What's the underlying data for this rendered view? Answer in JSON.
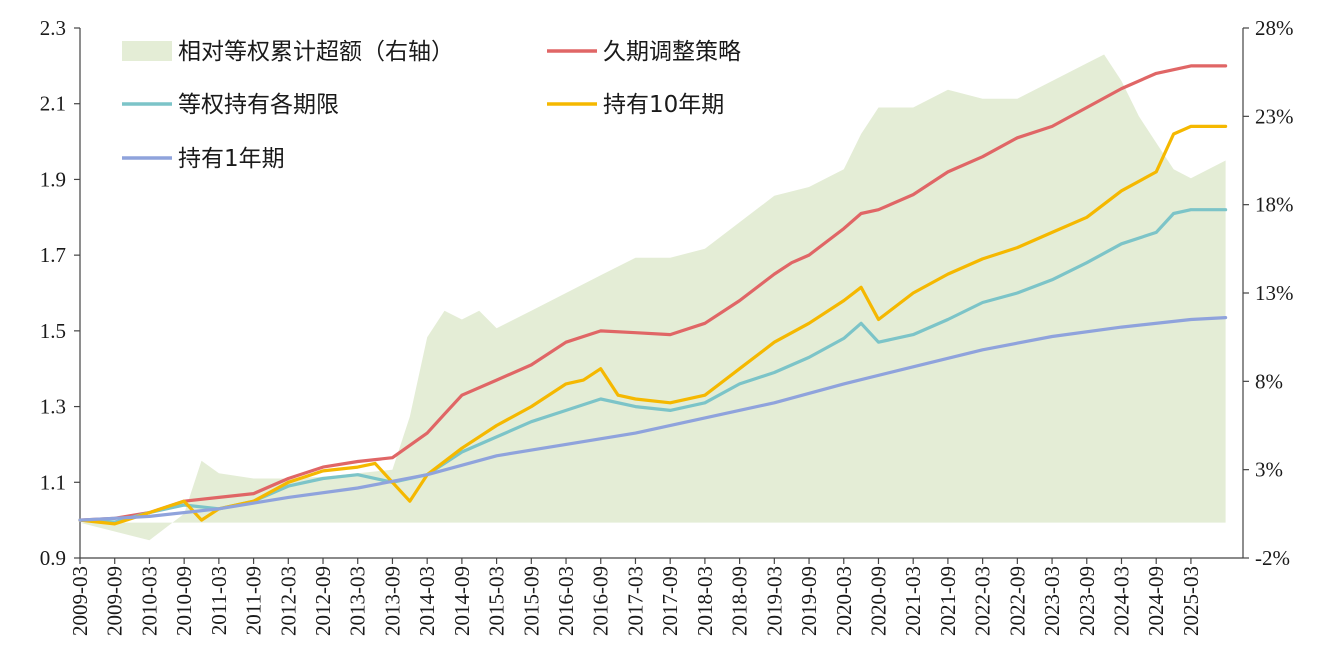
{
  "chart_data": {
    "type": "line",
    "title": "",
    "xlabel": "",
    "ylabel": "",
    "ylim": [
      0.9,
      2.3
    ],
    "y_ticks": [
      "0.9",
      "1.1",
      "1.3",
      "1.5",
      "1.7",
      "1.9",
      "2.1",
      "2.3"
    ],
    "y2lim": [
      -2,
      28
    ],
    "y2_ticks": [
      "-2%",
      "3%",
      "8%",
      "13%",
      "18%",
      "23%",
      "28%"
    ],
    "x_ticks": [
      "2009-03",
      "2009-09",
      "2010-03",
      "2010-09",
      "2011-03",
      "2011-09",
      "2012-03",
      "2012-09",
      "2013-03",
      "2013-09",
      "2014-03",
      "2014-09",
      "2015-03",
      "2015-09",
      "2016-03",
      "2016-09",
      "2017-03",
      "2017-09",
      "2018-03",
      "2018-09",
      "2019-03",
      "2019-09",
      "2020-03",
      "2020-09",
      "2021-03",
      "2021-09",
      "2022-03",
      "2022-09",
      "2023-03",
      "2023-09",
      "2024-03",
      "2024-09",
      "2025-03"
    ],
    "grid": false,
    "legend_position": "top-left",
    "area": {
      "name": "相对等权累计超额（右轴）",
      "color": "#e4edd6",
      "x": [
        "2009-03",
        "2009-09",
        "2010-03",
        "2010-09",
        "2010-12",
        "2011-03",
        "2011-09",
        "2012-03",
        "2012-09",
        "2013-03",
        "2013-09",
        "2013-12",
        "2014-03",
        "2014-06",
        "2014-09",
        "2014-12",
        "2015-03",
        "2015-09",
        "2016-03",
        "2016-09",
        "2017-03",
        "2017-09",
        "2018-03",
        "2018-09",
        "2019-03",
        "2019-09",
        "2020-03",
        "2020-06",
        "2020-09",
        "2021-03",
        "2021-09",
        "2022-03",
        "2022-09",
        "2023-03",
        "2023-09",
        "2023-12",
        "2024-03",
        "2024-06",
        "2024-09",
        "2024-12",
        "2025-03",
        "2025-09"
      ],
      "values": [
        0.0,
        -0.5,
        -1.0,
        0.5,
        3.5,
        2.8,
        2.5,
        2.5,
        2.6,
        2.8,
        3.0,
        6.0,
        10.5,
        12.0,
        11.5,
        12.0,
        11.0,
        12.0,
        13.0,
        14.0,
        15.0,
        15.0,
        15.5,
        17.0,
        18.5,
        19.0,
        20.0,
        22.0,
        23.5,
        23.5,
        24.5,
        24.0,
        24.0,
        25.0,
        26.0,
        26.5,
        25.0,
        23.0,
        21.5,
        20.0,
        19.5,
        20.5
      ]
    },
    "series": [
      {
        "name": "久期调整策略",
        "color": "#e06666",
        "x": [
          "2009-03",
          "2009-09",
          "2010-03",
          "2010-09",
          "2011-03",
          "2011-09",
          "2012-03",
          "2012-09",
          "2013-03",
          "2013-09",
          "2014-03",
          "2014-06",
          "2014-09",
          "2015-03",
          "2015-09",
          "2016-03",
          "2016-09",
          "2017-03",
          "2017-09",
          "2018-03",
          "2018-09",
          "2019-03",
          "2019-06",
          "2019-09",
          "2020-03",
          "2020-06",
          "2020-09",
          "2021-03",
          "2021-09",
          "2022-03",
          "2022-09",
          "2023-03",
          "2023-09",
          "2024-03",
          "2024-09",
          "2025-03",
          "2025-09"
        ],
        "values": [
          1.0,
          1.005,
          1.02,
          1.05,
          1.06,
          1.07,
          1.11,
          1.14,
          1.155,
          1.165,
          1.23,
          1.28,
          1.33,
          1.37,
          1.41,
          1.47,
          1.5,
          1.495,
          1.49,
          1.52,
          1.58,
          1.65,
          1.68,
          1.7,
          1.77,
          1.81,
          1.82,
          1.86,
          1.92,
          1.96,
          2.01,
          2.04,
          2.09,
          2.14,
          2.18,
          2.2,
          2.2
        ]
      },
      {
        "name": "等权持有各期限",
        "color": "#7cc4c8",
        "x": [
          "2009-03",
          "2009-09",
          "2010-03",
          "2010-09",
          "2011-03",
          "2011-09",
          "2012-03",
          "2012-09",
          "2013-03",
          "2013-09",
          "2014-03",
          "2014-09",
          "2015-03",
          "2015-09",
          "2016-03",
          "2016-09",
          "2017-03",
          "2017-09",
          "2018-03",
          "2018-09",
          "2019-03",
          "2019-09",
          "2020-03",
          "2020-06",
          "2020-09",
          "2021-03",
          "2021-09",
          "2022-03",
          "2022-09",
          "2023-03",
          "2023-09",
          "2024-03",
          "2024-09",
          "2024-12",
          "2025-03",
          "2025-09"
        ],
        "values": [
          1.0,
          0.995,
          1.02,
          1.04,
          1.03,
          1.05,
          1.09,
          1.11,
          1.12,
          1.1,
          1.12,
          1.18,
          1.22,
          1.26,
          1.29,
          1.32,
          1.3,
          1.29,
          1.31,
          1.36,
          1.39,
          1.43,
          1.48,
          1.52,
          1.47,
          1.49,
          1.53,
          1.575,
          1.6,
          1.635,
          1.68,
          1.73,
          1.76,
          1.81,
          1.82,
          1.82
        ]
      },
      {
        "name": "持有10年期",
        "color": "#f5b800",
        "x": [
          "2009-03",
          "2009-09",
          "2010-03",
          "2010-09",
          "2010-12",
          "2011-03",
          "2011-09",
          "2012-03",
          "2012-09",
          "2013-03",
          "2013-06",
          "2013-09",
          "2013-12",
          "2014-03",
          "2014-09",
          "2015-03",
          "2015-09",
          "2016-03",
          "2016-06",
          "2016-09",
          "2016-12",
          "2017-03",
          "2017-09",
          "2018-03",
          "2018-09",
          "2019-03",
          "2019-09",
          "2020-03",
          "2020-06",
          "2020-09",
          "2021-03",
          "2021-09",
          "2022-03",
          "2022-09",
          "2023-03",
          "2023-09",
          "2024-03",
          "2024-09",
          "2024-12",
          "2025-03",
          "2025-09"
        ],
        "values": [
          1.0,
          0.99,
          1.02,
          1.05,
          1.0,
          1.03,
          1.05,
          1.1,
          1.13,
          1.14,
          1.15,
          1.1,
          1.05,
          1.12,
          1.19,
          1.25,
          1.3,
          1.36,
          1.37,
          1.4,
          1.33,
          1.32,
          1.31,
          1.33,
          1.4,
          1.47,
          1.52,
          1.58,
          1.615,
          1.53,
          1.6,
          1.65,
          1.69,
          1.72,
          1.76,
          1.8,
          1.87,
          1.92,
          2.02,
          2.04,
          2.04
        ]
      },
      {
        "name": "持有1年期",
        "color": "#8fa3dc",
        "x": [
          "2009-03",
          "2010-03",
          "2011-03",
          "2012-03",
          "2013-03",
          "2014-03",
          "2015-03",
          "2016-03",
          "2017-03",
          "2018-03",
          "2019-03",
          "2020-03",
          "2021-03",
          "2022-03",
          "2023-03",
          "2024-03",
          "2025-03",
          "2025-09"
        ],
        "values": [
          1.0,
          1.01,
          1.03,
          1.06,
          1.085,
          1.12,
          1.17,
          1.2,
          1.23,
          1.27,
          1.31,
          1.36,
          1.405,
          1.45,
          1.485,
          1.51,
          1.53,
          1.535
        ]
      }
    ]
  }
}
